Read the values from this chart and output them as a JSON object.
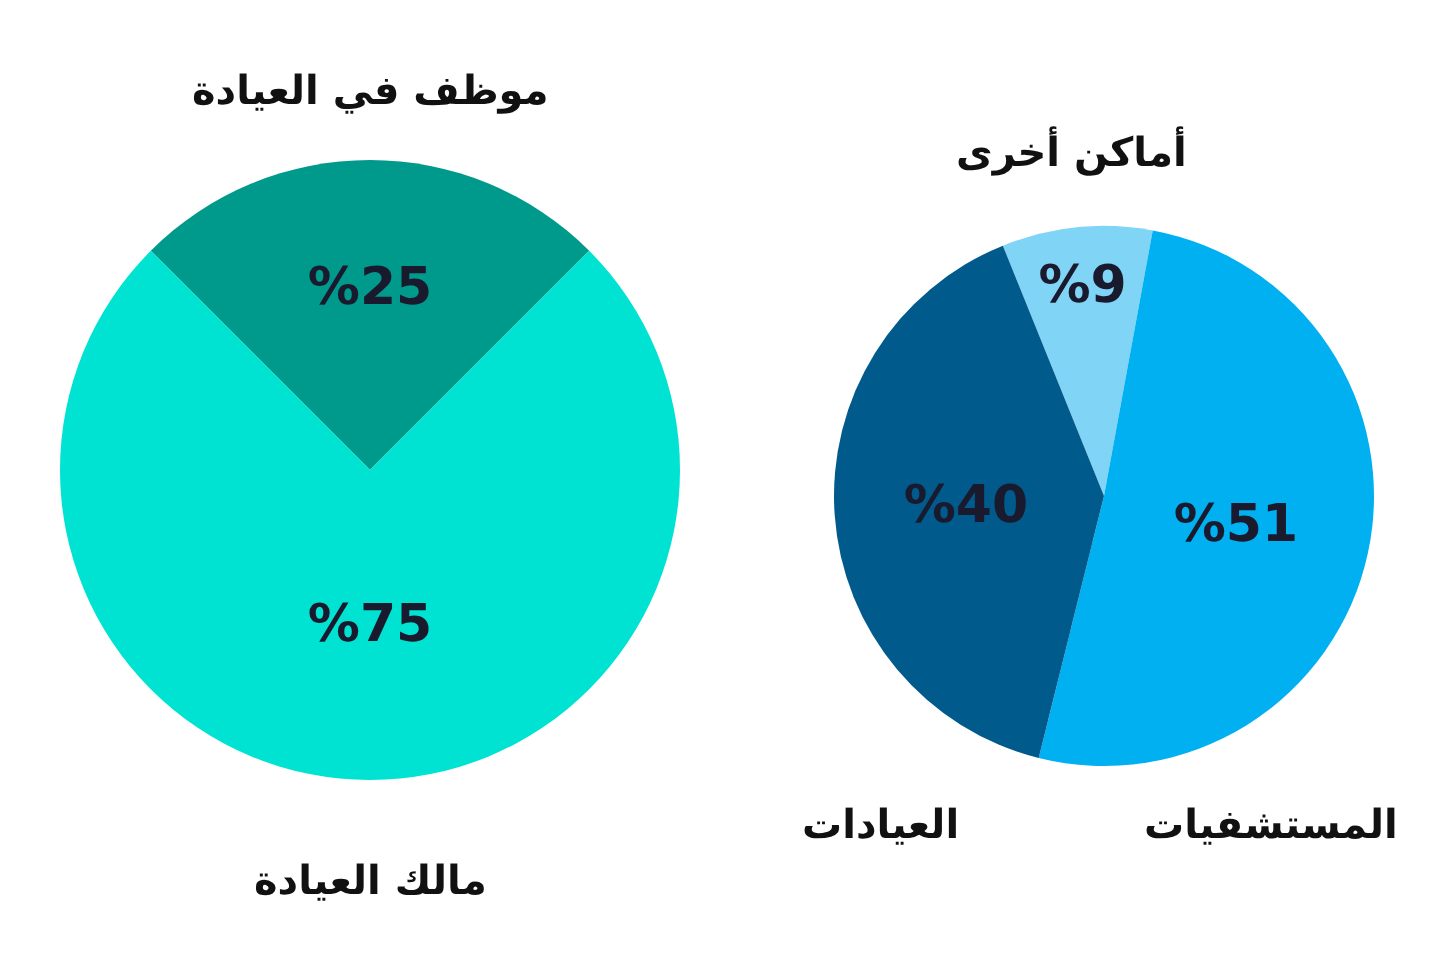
{
  "chart_data": [
    {
      "type": "pie",
      "categories": [
        "موظف في العيادة",
        "مالك العيادة"
      ],
      "values": [
        25,
        75
      ],
      "colors": [
        "#009a8c",
        "#00e3d2"
      ],
      "value_labels": [
        "%25",
        "%75"
      ]
    },
    {
      "type": "pie",
      "categories": [
        "أماكن أخرى",
        "المستشفيات",
        "العيادات"
      ],
      "values": [
        9,
        51,
        40
      ],
      "colors": [
        "#80d4f6",
        "#00b0f0",
        "#005a8c"
      ],
      "value_labels": [
        "%9",
        "%51",
        "%40"
      ]
    }
  ]
}
